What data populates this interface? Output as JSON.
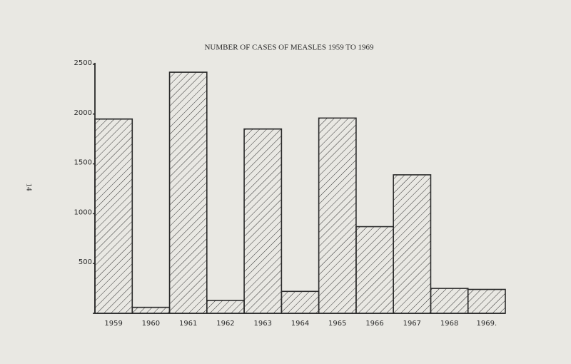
{
  "page_number": "14",
  "chart_data": {
    "type": "bar",
    "title": "NUMBER OF CASES OF MEASLES 1959 TO 1969",
    "categories": [
      "1959",
      "1960",
      "1961",
      "1962",
      "1963",
      "1964",
      "1965",
      "1966",
      "1967",
      "1968",
      "1969."
    ],
    "values": [
      1950,
      60,
      2420,
      130,
      1850,
      220,
      1960,
      870,
      1390,
      250,
      240
    ],
    "color": "#2a2a2a",
    "ylim": [
      0,
      2500
    ],
    "yticks": [
      500,
      1000,
      1500,
      2000,
      2500
    ],
    "grid": false
  }
}
